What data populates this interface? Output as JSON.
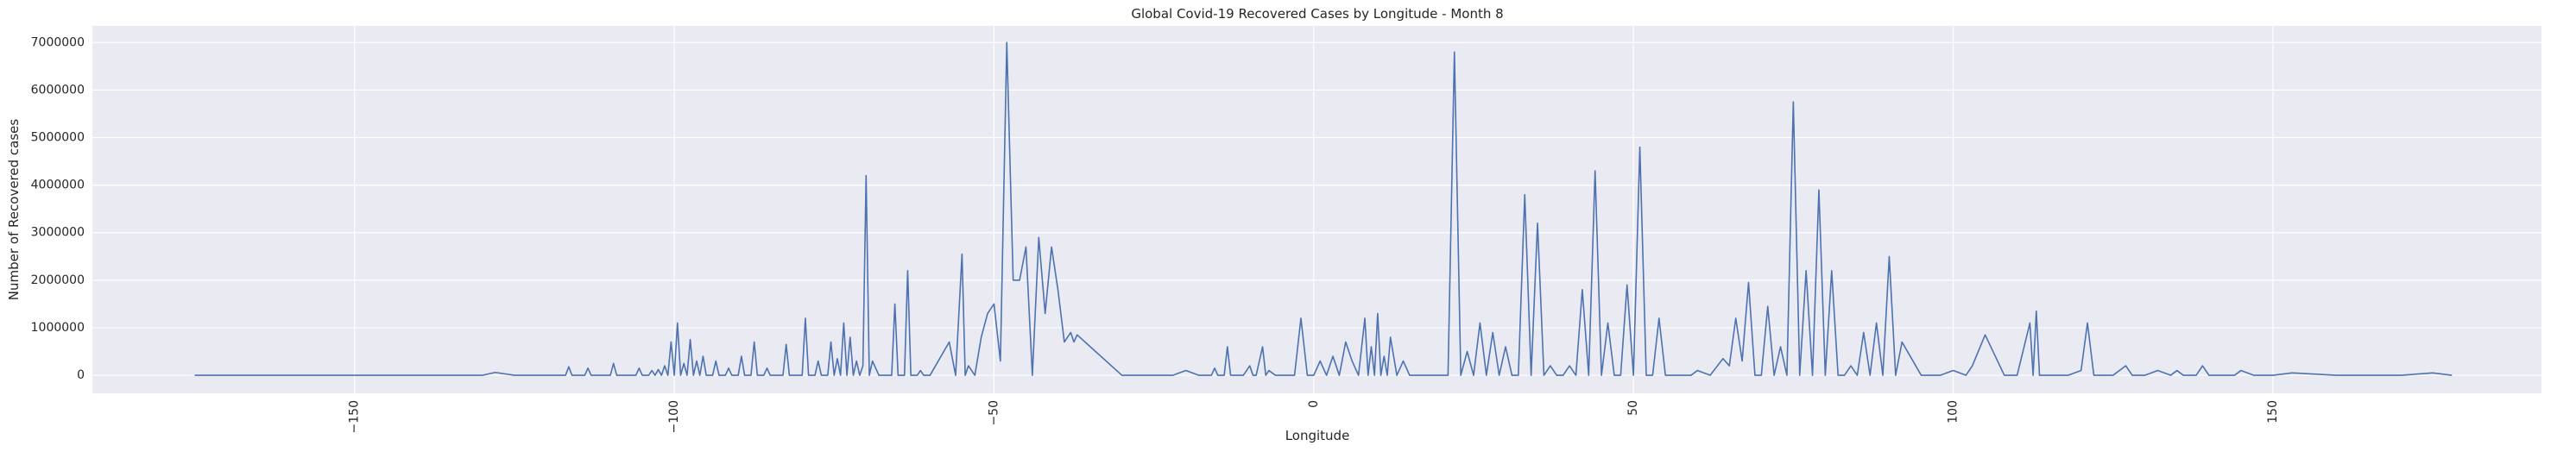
{
  "chart_data": {
    "type": "line",
    "title": "Global Covid-19 Recovered Cases by Longitude - Month 8",
    "xlabel": "Longitude",
    "ylabel": "Number of Recovered cases",
    "xlim": [
      -191,
      192
    ],
    "ylim": [
      -380000,
      7350000
    ],
    "xticks": [
      -150,
      -100,
      -50,
      0,
      50,
      100,
      150
    ],
    "yticks": [
      0,
      1000000,
      2000000,
      3000000,
      4000000,
      5000000,
      6000000,
      7000000
    ],
    "grid": true,
    "legend": "none",
    "colors": {
      "line": "#4c72b0",
      "plot_bg": "#eaeaf2",
      "grid": "#ffffff"
    },
    "series": [
      {
        "x": [
          -175,
          -160,
          -140,
          -130,
          -128,
          -125,
          -117,
          -116.5,
          -116,
          -114,
          -113.5,
          -113,
          -110,
          -109.5,
          -109,
          -106,
          -105.5,
          -105,
          -104,
          -103.5,
          -103,
          -102.5,
          -102,
          -101.5,
          -101,
          -100.5,
          -100,
          -99.5,
          -99,
          -98.5,
          -98,
          -97.5,
          -97,
          -96.5,
          -96,
          -95.5,
          -95,
          -94,
          -93.5,
          -93,
          -92,
          -91.5,
          -91,
          -90,
          -89.5,
          -89,
          -88,
          -87.5,
          -87,
          -86,
          -85.5,
          -85,
          -83,
          -82.5,
          -82,
          -80,
          -79.5,
          -79,
          -78,
          -77.5,
          -77,
          -76,
          -75.5,
          -75,
          -74.5,
          -74,
          -73.5,
          -73,
          -72.5,
          -72,
          -71.5,
          -71,
          -70.5,
          -70,
          -69.5,
          -69,
          -68,
          -66,
          -65.5,
          -65,
          -64,
          -63.5,
          -63,
          -62,
          -61.5,
          -61,
          -60,
          -57,
          -56,
          -55,
          -54.5,
          -54,
          -53,
          -52,
          -51,
          -50,
          -49,
          -48,
          -47,
          -46,
          -45,
          -44,
          -43,
          -42,
          -41,
          -40,
          -39,
          -38,
          -37.5,
          -37,
          -30,
          -25,
          -22,
          -20,
          -18,
          -16,
          -15.5,
          -15,
          -14,
          -13.5,
          -13,
          -12,
          -11,
          -10,
          -9.5,
          -9,
          -8,
          -7.5,
          -7,
          -6,
          -5,
          -4,
          -3,
          -2,
          -1,
          0,
          1,
          2,
          3,
          4,
          5,
          6,
          7,
          8,
          8.5,
          9,
          9.5,
          10,
          10.5,
          11,
          11.5,
          12,
          13,
          14,
          15,
          16,
          17,
          18,
          19,
          20,
          21,
          22,
          23,
          24,
          25,
          26,
          27,
          28,
          29,
          30,
          31,
          32,
          33,
          34,
          35,
          36,
          37,
          38,
          39,
          40,
          41,
          42,
          43,
          44,
          45,
          46,
          47,
          48,
          49,
          50,
          51,
          52,
          53,
          54,
          55,
          56,
          57,
          58,
          59,
          60,
          62,
          64,
          65,
          66,
          67,
          68,
          69,
          70,
          71,
          72,
          73,
          74,
          75,
          76,
          77,
          78,
          79,
          80,
          81,
          82,
          83,
          84,
          85,
          86,
          87,
          88,
          89,
          90,
          91,
          92,
          95,
          98,
          100,
          102,
          103,
          105,
          108,
          110,
          112,
          112.5,
          113,
          113.5,
          114,
          116,
          118,
          120,
          121,
          122,
          125,
          127,
          128,
          130,
          132,
          134,
          135,
          136,
          138,
          139,
          140,
          144,
          145,
          147,
          150,
          153,
          160,
          170,
          175,
          178
        ],
        "y": [
          0,
          0,
          0,
          0,
          60000,
          0,
          0,
          180000,
          0,
          0,
          150000,
          0,
          0,
          250000,
          0,
          0,
          150000,
          0,
          0,
          100000,
          0,
          120000,
          0,
          200000,
          0,
          700000,
          0,
          1100000,
          0,
          250000,
          0,
          750000,
          0,
          300000,
          0,
          400000,
          0,
          0,
          300000,
          0,
          0,
          150000,
          0,
          0,
          400000,
          0,
          0,
          700000,
          0,
          0,
          150000,
          0,
          0,
          650000,
          0,
          0,
          1200000,
          0,
          0,
          300000,
          0,
          0,
          700000,
          0,
          350000,
          0,
          1100000,
          0,
          800000,
          0,
          300000,
          0,
          200000,
          4200000,
          0,
          300000,
          0,
          0,
          1500000,
          0,
          0,
          2200000,
          0,
          0,
          100000,
          0,
          0,
          700000,
          0,
          2550000,
          0,
          200000,
          0,
          800000,
          1300000,
          1500000,
          300000,
          7000000,
          2000000,
          2000000,
          2700000,
          0,
          2900000,
          1300000,
          2700000,
          1800000,
          700000,
          900000,
          700000,
          850000,
          0,
          0,
          0,
          100000,
          0,
          0,
          150000,
          0,
          0,
          600000,
          0,
          0,
          0,
          200000,
          0,
          0,
          600000,
          0,
          100000,
          0,
          0,
          0,
          0,
          1200000,
          0,
          0,
          300000,
          0,
          400000,
          0,
          700000,
          300000,
          0,
          1200000,
          0,
          600000,
          0,
          1300000,
          0,
          400000,
          0,
          800000,
          0,
          300000,
          0,
          0,
          0,
          0,
          0,
          0,
          0,
          6800000,
          0,
          500000,
          0,
          1100000,
          0,
          900000,
          0,
          600000,
          0,
          0,
          3800000,
          0,
          3200000,
          0,
          200000,
          0,
          0,
          200000,
          0,
          1800000,
          0,
          4300000,
          0,
          1100000,
          0,
          0,
          1900000,
          0,
          4800000,
          0,
          0,
          1200000,
          0,
          0,
          0,
          0,
          0,
          100000,
          0,
          350000,
          200000,
          1200000,
          300000,
          1950000,
          0,
          0,
          1450000,
          0,
          600000,
          0,
          5750000,
          0,
          2200000,
          0,
          3900000,
          0,
          2200000,
          0,
          0,
          200000,
          0,
          900000,
          0,
          1100000,
          0,
          2500000,
          0,
          700000,
          0,
          0,
          100000,
          0,
          200000,
          850000,
          0,
          0,
          1100000,
          0,
          1350000,
          0,
          0,
          0,
          0,
          100000,
          1100000,
          0,
          0,
          200000,
          0,
          0,
          100000,
          0,
          100000,
          0,
          0,
          200000,
          0,
          0,
          100000,
          0,
          0,
          50000,
          0,
          0,
          50000,
          0
        ]
      }
    ]
  }
}
